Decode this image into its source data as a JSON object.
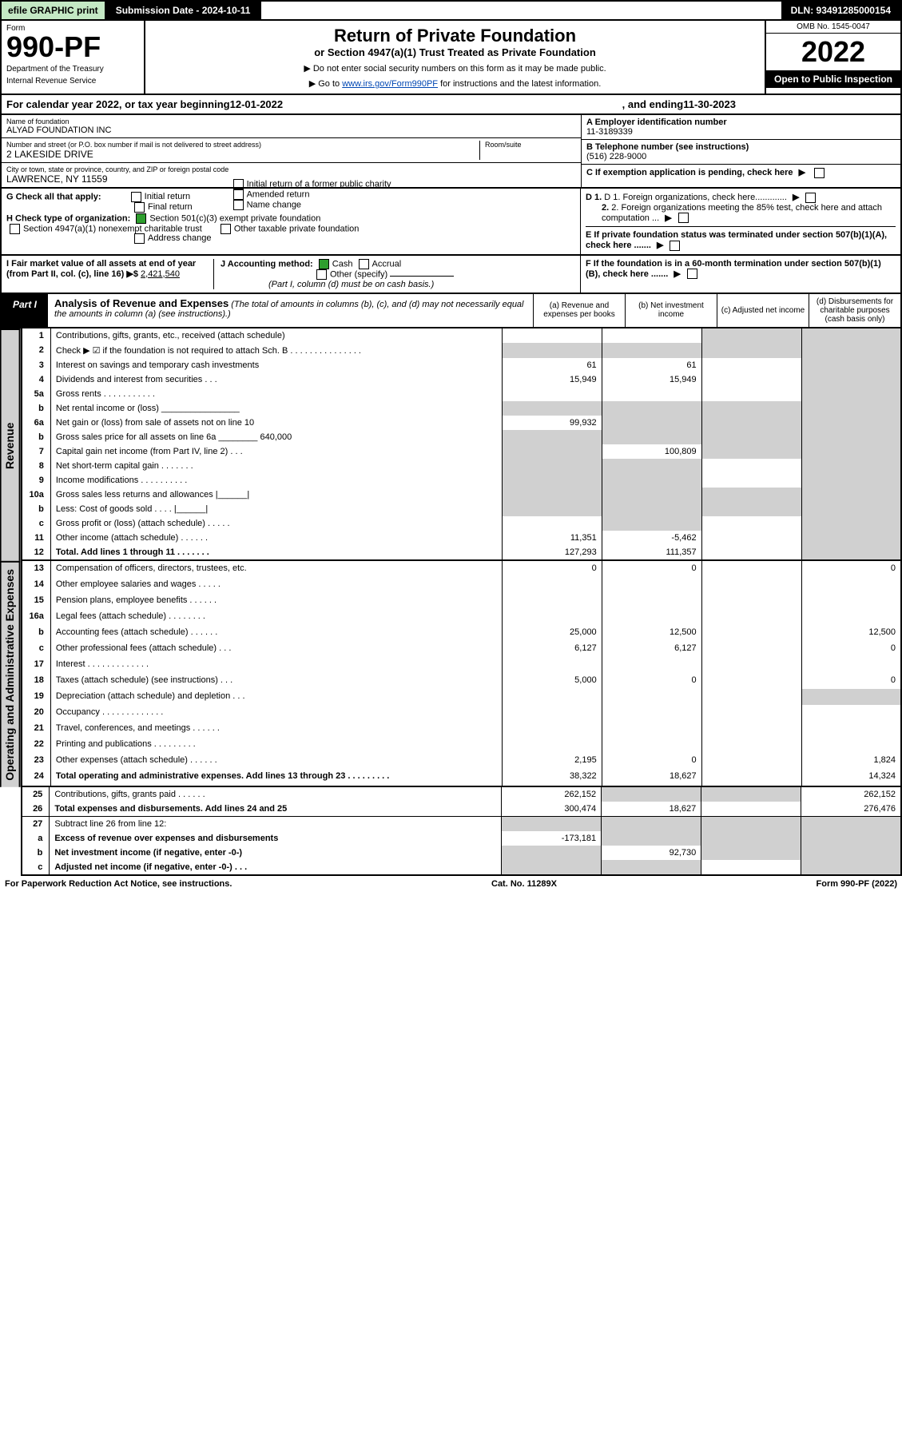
{
  "topbar": {
    "efile": "efile GRAPHIC print",
    "submission": "Submission Date - 2024-10-11",
    "dln": "DLN: 93491285000154"
  },
  "header": {
    "form_word": "Form",
    "form_num": "990-PF",
    "dept": "Department of the Treasury",
    "irs": "Internal Revenue Service",
    "title": "Return of Private Foundation",
    "subtitle": "or Section 4947(a)(1) Trust Treated as Private Foundation",
    "warn1": "▶ Do not enter social security numbers on this form as it may be made public.",
    "warn2_pre": "▶ Go to ",
    "warn2_link": "www.irs.gov/Form990PF",
    "warn2_post": " for instructions and the latest information.",
    "omb": "OMB No. 1545-0047",
    "year": "2022",
    "open": "Open to Public Inspection"
  },
  "calendar": {
    "pre": "For calendar year 2022, or tax year beginning ",
    "begin": "12-01-2022",
    "mid": ", and ending ",
    "end": "11-30-2023"
  },
  "entity": {
    "name_lbl": "Name of foundation",
    "name": "ALYAD FOUNDATION INC",
    "addr_lbl": "Number and street (or P.O. box number if mail is not delivered to street address)",
    "addr": "2 LAKESIDE DRIVE",
    "room_lbl": "Room/suite",
    "room": "",
    "city_lbl": "City or town, state or province, country, and ZIP or foreign postal code",
    "city": "LAWRENCE, NY  11559",
    "a_lbl": "A Employer identification number",
    "a": "11-3189339",
    "b_lbl": "B Telephone number (see instructions)",
    "b": "(516) 228-9000",
    "c_lbl": "C If exemption application is pending, check here"
  },
  "g": {
    "lbl": "G Check all that apply:",
    "initial": "Initial return",
    "final": "Final return",
    "addrchg": "Address change",
    "initial_pub": "Initial return of a former public charity",
    "amended": "Amended return",
    "namechg": "Name change"
  },
  "h": {
    "lbl": "H Check type of organization:",
    "c3": "Section 501(c)(3) exempt private foundation",
    "nonexempt": "Section 4947(a)(1) nonexempt charitable trust",
    "other": "Other taxable private foundation"
  },
  "i": {
    "lbl": "I Fair market value of all assets at end of year (from Part II, col. (c), line 16) ▶$",
    "val": "2,421,540"
  },
  "j": {
    "lbl": "J Accounting method:",
    "cash": "Cash",
    "accrual": "Accrual",
    "other": "Other (specify)",
    "note": "(Part I, column (d) must be on cash basis.)"
  },
  "d": {
    "d1": "D 1. Foreign organizations, check here.............",
    "d2": "2. Foreign organizations meeting the 85% test, check here and attach computation ..."
  },
  "e": {
    "lbl": "E  If private foundation status was terminated under section 507(b)(1)(A), check here ......."
  },
  "f": {
    "lbl": "F  If the foundation is in a 60-month termination under section 507(b)(1)(B), check here ......."
  },
  "part1": {
    "lbl": "Part I",
    "title": "Analysis of Revenue and Expenses",
    "title_note": "(The total of amounts in columns (b), (c), and (d) may not necessarily equal the amounts in column (a) (see instructions).)",
    "col_a": "(a)   Revenue and expenses per books",
    "col_b": "(b)   Net investment income",
    "col_c": "(c)   Adjusted net income",
    "col_d": "(d)   Disbursements for charitable purposes (cash basis only)"
  },
  "side": {
    "revenue": "Revenue",
    "expenses": "Operating and Administrative Expenses"
  },
  "rows": [
    {
      "n": "1",
      "d": "Contributions, gifts, grants, etc., received (attach schedule)",
      "a": "",
      "b": "",
      "cG": true,
      "dG": true
    },
    {
      "n": "2",
      "d": "Check ▶ ☑ if the foundation is not required to attach Sch. B    .   .   .   .   .   .   .   .   .   .   .   .   .   .   .",
      "aG": true,
      "bG": true,
      "cG": true,
      "dG": true
    },
    {
      "n": "3",
      "d": "Interest on savings and temporary cash investments",
      "a": "61",
      "b": "61",
      "c": "",
      "dG": true
    },
    {
      "n": "4",
      "d": "Dividends and interest from securities    .   .   .",
      "a": "15,949",
      "b": "15,949",
      "c": "",
      "dG": true
    },
    {
      "n": "5a",
      "d": "Gross rents    .   .   .   .   .   .   .   .   .   .   .",
      "a": "",
      "b": "",
      "c": "",
      "dG": true
    },
    {
      "n": "b",
      "d": "Net rental income or (loss)  ________________",
      "aG": true,
      "bG": true,
      "cG": true,
      "dG": true
    },
    {
      "n": "6a",
      "d": "Net gain or (loss) from sale of assets not on line 10",
      "a": "99,932",
      "bG": true,
      "cG": true,
      "dG": true
    },
    {
      "n": "b",
      "d": "Gross sales price for all assets on line 6a ________  640,000",
      "aG": true,
      "bG": true,
      "cG": true,
      "dG": true
    },
    {
      "n": "7",
      "d": "Capital gain net income (from Part IV, line 2)    .   .   .",
      "aG": true,
      "b": "100,809",
      "cG": true,
      "dG": true
    },
    {
      "n": "8",
      "d": "Net short-term capital gain    .   .   .   .   .   .   .",
      "aG": true,
      "bG": true,
      "c": "",
      "dG": true
    },
    {
      "n": "9",
      "d": "Income modifications  .   .   .   .   .   .   .   .   .   .",
      "aG": true,
      "bG": true,
      "c": "",
      "dG": true
    },
    {
      "n": "10a",
      "d": "Gross sales less returns and allowances   |______|",
      "aG": true,
      "bG": true,
      "cG": true,
      "dG": true
    },
    {
      "n": "b",
      "d": "Less: Cost of goods sold    .   .   .   .   |______|",
      "aG": true,
      "bG": true,
      "cG": true,
      "dG": true
    },
    {
      "n": "c",
      "d": "Gross profit or (loss) (attach schedule)    .   .   .   .   .",
      "a": "",
      "bG": true,
      "c": "",
      "dG": true
    },
    {
      "n": "11",
      "d": "Other income (attach schedule)    .   .   .   .   .   .",
      "a": "11,351",
      "b": "-5,462",
      "c": "",
      "dG": true
    },
    {
      "n": "12",
      "d": "Total. Add lines 1 through 11    .   .   .   .   .   .   .",
      "a": "127,293",
      "b": "111,357",
      "c": "",
      "dG": true,
      "bold": true,
      "br": true
    },
    {
      "n": "13",
      "d": "Compensation of officers, directors, trustees, etc.",
      "a": "0",
      "b": "0",
      "c": "",
      "dd": "0"
    },
    {
      "n": "14",
      "d": "Other employee salaries and wages    .   .   .   .   .",
      "a": "",
      "b": "",
      "c": "",
      "dd": ""
    },
    {
      "n": "15",
      "d": "Pension plans, employee benefits  .   .   .   .   .   .",
      "a": "",
      "b": "",
      "c": "",
      "dd": ""
    },
    {
      "n": "16a",
      "d": "Legal fees (attach schedule)  .   .   .   .   .   .   .   .",
      "a": "",
      "b": "",
      "c": "",
      "dd": ""
    },
    {
      "n": "b",
      "d": "Accounting fees (attach schedule)  .   .   .   .   .   .",
      "a": "25,000",
      "b": "12,500",
      "c": "",
      "dd": "12,500"
    },
    {
      "n": "c",
      "d": "Other professional fees (attach schedule)    .   .   .",
      "a": "6,127",
      "b": "6,127",
      "c": "",
      "dd": "0"
    },
    {
      "n": "17",
      "d": "Interest   .   .   .   .   .   .   .   .   .   .   .   .   .",
      "a": "",
      "b": "",
      "c": "",
      "dd": ""
    },
    {
      "n": "18",
      "d": "Taxes (attach schedule) (see instructions)    .   .   .",
      "a": "5,000",
      "b": "0",
      "c": "",
      "dd": "0"
    },
    {
      "n": "19",
      "d": "Depreciation (attach schedule) and depletion    .   .   .",
      "a": "",
      "b": "",
      "c": "",
      "dG": true
    },
    {
      "n": "20",
      "d": "Occupancy  .   .   .   .   .   .   .   .   .   .   .   .   .",
      "a": "",
      "b": "",
      "c": "",
      "dd": ""
    },
    {
      "n": "21",
      "d": "Travel, conferences, and meetings  .   .   .   .   .   .",
      "a": "",
      "b": "",
      "c": "",
      "dd": ""
    },
    {
      "n": "22",
      "d": "Printing and publications  .   .   .   .   .   .   .   .   .",
      "a": "",
      "b": "",
      "c": "",
      "dd": ""
    },
    {
      "n": "23",
      "d": "Other expenses (attach schedule)  .   .   .   .   .   .",
      "a": "2,195",
      "b": "0",
      "c": "",
      "dd": "1,824"
    },
    {
      "n": "24",
      "d": "Total operating and administrative expenses. Add lines 13 through 23    .   .   .   .   .   .   .   .   .",
      "a": "38,322",
      "b": "18,627",
      "c": "",
      "dd": "14,324",
      "bold": true
    },
    {
      "n": "25",
      "d": "Contributions, gifts, grants paid    .   .   .   .   .   .",
      "a": "262,152",
      "bG": true,
      "cG": true,
      "dd": "262,152"
    },
    {
      "n": "26",
      "d": "Total expenses and disbursements. Add lines 24 and 25",
      "a": "300,474",
      "b": "18,627",
      "c": "",
      "dd": "276,476",
      "bold": true,
      "br": true
    },
    {
      "n": "27",
      "d": "Subtract line 26 from line 12:",
      "aG": true,
      "bG": true,
      "cG": true,
      "dG": true
    },
    {
      "n": "a",
      "d": "Excess of revenue over expenses and disbursements",
      "a": "-173,181",
      "bG": true,
      "cG": true,
      "dG": true,
      "bold": true
    },
    {
      "n": "b",
      "d": "Net investment income (if negative, enter -0-)",
      "aG": true,
      "b": "92,730",
      "cG": true,
      "dG": true,
      "bold": true
    },
    {
      "n": "c",
      "d": "Adjusted net income (if negative, enter -0-)    .   .   .",
      "aG": true,
      "bG": true,
      "c": "",
      "dG": true,
      "bold": true
    }
  ],
  "footer": {
    "left": "For Paperwork Reduction Act Notice, see instructions.",
    "mid": "Cat. No. 11289X",
    "right": "Form 990-PF (2022)"
  }
}
